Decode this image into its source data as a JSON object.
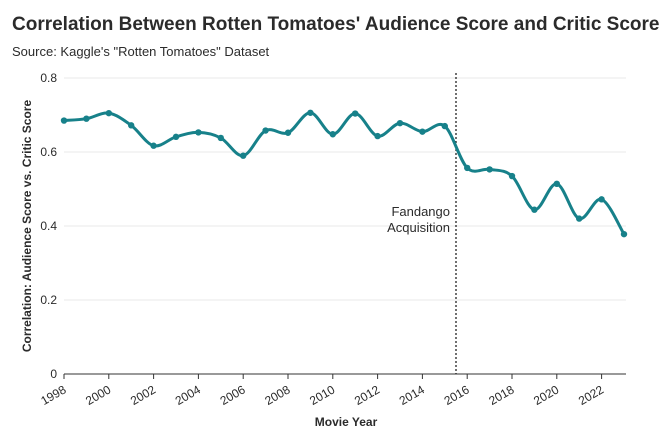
{
  "chart_data": {
    "type": "line",
    "title": "Correlation Between Rotten Tomatoes' Audience Score and Critic Score",
    "subtitle": "Source: Kaggle's \"Rotten Tomatoes\" Dataset",
    "xlabel": "Movie Year",
    "ylabel": "Correlation: Audience Score vs. Critic Score",
    "xlim": [
      1998,
      2023
    ],
    "ylim": [
      0,
      0.8
    ],
    "x_ticks": [
      1998,
      2000,
      2002,
      2004,
      2006,
      2008,
      2010,
      2012,
      2014,
      2016,
      2018,
      2020,
      2022
    ],
    "y_ticks": [
      0,
      0.2,
      0.4,
      0.6,
      0.8
    ],
    "y_tick_labels": [
      "0",
      "0.2",
      "0.4",
      "0.6",
      "0.8"
    ],
    "grid": "horizontal",
    "line_color": "#17818a",
    "x": [
      1998,
      1999,
      2000,
      2001,
      2002,
      2003,
      2004,
      2005,
      2006,
      2007,
      2008,
      2009,
      2010,
      2011,
      2012,
      2013,
      2014,
      2015,
      2016,
      2017,
      2018,
      2019,
      2020,
      2021,
      2022,
      2023
    ],
    "values": [
      0.685,
      0.69,
      0.705,
      0.672,
      0.617,
      0.641,
      0.653,
      0.638,
      0.59,
      0.658,
      0.652,
      0.706,
      0.648,
      0.704,
      0.643,
      0.678,
      0.655,
      0.67,
      0.557,
      0.553,
      0.535,
      0.444,
      0.514,
      0.42,
      0.472,
      0.378
    ],
    "annotation": {
      "x": 2015.5,
      "lines": [
        "Fandango",
        "Acquisition"
      ]
    }
  }
}
